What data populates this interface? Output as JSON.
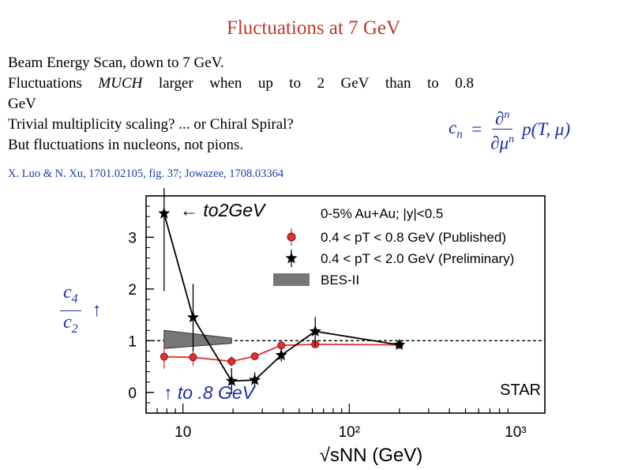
{
  "slide": {
    "title": "Fluctuations at 7 GeV",
    "lines": [
      "Beam Energy Scan, down to 7 GeV.",
      "GeV",
      "Trivial multiplicity scaling? ... or Chiral Spiral?",
      "But fluctuations in nucleons, not pions."
    ],
    "justified_words": [
      "Fluctuations",
      "MUCH",
      "larger",
      "when",
      "up",
      "to",
      "2",
      "GeV",
      "than",
      "to",
      "0.8"
    ],
    "reference": "X. Luo & N. Xu, 1701.02105, fig. 37; Jowazee, 1708.03364",
    "formula": {
      "lhs": "c",
      "lhs_sub": "n",
      "eq": "=",
      "num": "∂",
      "num_sup": "n",
      "den": "∂μ",
      "den_sup": "n",
      "rhs": "p(T, μ)"
    },
    "ratio": {
      "num": "c",
      "num_sub": "4",
      "den": "c",
      "den_sub": "2",
      "arrow": "↑"
    },
    "annotations": {
      "top": "← to2GeV",
      "bottom": "↑ to .8 GeV"
    },
    "colors": {
      "title": "#c0392b",
      "math": "#1a2ea8",
      "published": "#e03030",
      "preliminary": "#000000",
      "bes": "#777777"
    }
  },
  "chart_data": {
    "type": "scatter",
    "x_scale": "log",
    "xlim": [
      6,
      1500
    ],
    "ylim": [
      -0.4,
      3.8
    ],
    "x_ticks": [
      {
        "v": 10,
        "label": "10"
      },
      {
        "v": 100,
        "label": "10²"
      },
      {
        "v": 1000,
        "label": "10³"
      }
    ],
    "y_ticks": [
      {
        "v": 0,
        "label": "0"
      },
      {
        "v": 1,
        "label": "1"
      },
      {
        "v": 2,
        "label": "2"
      },
      {
        "v": 3,
        "label": "3"
      }
    ],
    "xlabel": "√sNN (GeV)",
    "legend_header": "0-5% Au+Au; |y|<0.5",
    "watermark": "STAR",
    "reference_line": 1,
    "series": [
      {
        "name": "0.4 < pT < 0.8 GeV (Published)",
        "marker": "circle",
        "x": [
          7.7,
          11.5,
          19.6,
          27,
          39,
          62.4,
          200
        ],
        "y": [
          0.69,
          0.68,
          0.6,
          0.7,
          0.91,
          0.93,
          0.92
        ],
        "err": [
          0.23,
          0.17,
          0.1,
          0.06,
          0.05,
          0.06,
          0.05
        ]
      },
      {
        "name": "0.4 < pT < 2.0 GeV (Preliminary)",
        "marker": "star",
        "x": [
          7.7,
          11.5,
          19.6,
          27,
          39,
          62.4,
          200
        ],
        "y": [
          3.46,
          1.45,
          0.22,
          0.24,
          0.72,
          1.18,
          0.92
        ],
        "err": [
          1.5,
          0.65,
          0.25,
          0.15,
          0.12,
          0.28,
          0.05
        ]
      }
    ],
    "band": {
      "name": "BES-II",
      "x": [
        7.7,
        19.6
      ],
      "y_low_start": 0.85,
      "y_high_start": 1.2,
      "y_low_end": 0.95,
      "y_high_end": 1.05
    }
  }
}
